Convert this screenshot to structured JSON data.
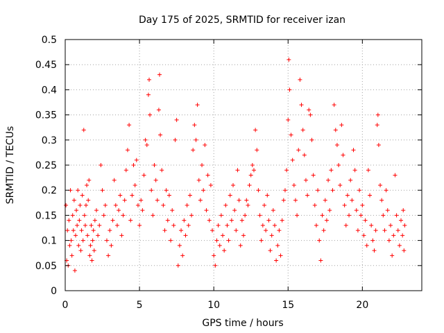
{
  "chart_data": {
    "type": "scatter",
    "title": "Day 175 of 2025, SRMTID for receiver izan",
    "xlabel": "GPS time / hours",
    "ylabel": "SRMTID / TECUs",
    "xlim": [
      0,
      24
    ],
    "ylim": [
      0,
      0.5
    ],
    "xticks": [
      0,
      5,
      10,
      15,
      20
    ],
    "yticks": [
      0,
      0.05,
      0.1,
      0.15,
      0.2,
      0.25,
      0.3,
      0.35,
      0.4,
      0.45,
      0.5
    ],
    "x_tick_labels": [
      "0",
      "5",
      "10",
      "15",
      "20"
    ],
    "y_tick_labels": [
      "0",
      "0.05",
      "0.1",
      "0.15",
      "0.2",
      "0.25",
      "0.3",
      "0.35",
      "0.4",
      "0.45",
      "0.5"
    ],
    "grid": true,
    "marker": "plus",
    "color": "#ff0000",
    "series": [
      {
        "name": "SRMTID",
        "points": [
          [
            0.05,
            0.17
          ],
          [
            0.1,
            0.06
          ],
          [
            0.15,
            0.12
          ],
          [
            0.2,
            0.05
          ],
          [
            0.25,
            0.14
          ],
          [
            0.3,
            0.09
          ],
          [
            0.35,
            0.2
          ],
          [
            0.4,
            0.1
          ],
          [
            0.45,
            0.07
          ],
          [
            0.5,
            0.15
          ],
          [
            0.55,
            0.12
          ],
          [
            0.6,
            0.18
          ],
          [
            0.65,
            0.04
          ],
          [
            0.7,
            0.11
          ],
          [
            0.75,
            0.16
          ],
          [
            0.8,
            0.13
          ],
          [
            0.85,
            0.2
          ],
          [
            0.9,
            0.09
          ],
          [
            0.95,
            0.14
          ],
          [
            1.0,
            0.17
          ],
          [
            1.05,
            0.08
          ],
          [
            1.1,
            0.12
          ],
          [
            1.15,
            0.19
          ],
          [
            1.2,
            0.1
          ],
          [
            1.25,
            0.32
          ],
          [
            1.3,
            0.15
          ],
          [
            1.35,
            0.13
          ],
          [
            1.4,
            0.17
          ],
          [
            1.45,
            0.21
          ],
          [
            1.5,
            0.11
          ],
          [
            1.55,
            0.18
          ],
          [
            1.6,
            0.22
          ],
          [
            1.65,
            0.07
          ],
          [
            1.7,
            0.09
          ],
          [
            1.75,
            0.13
          ],
          [
            1.8,
            0.06
          ],
          [
            1.85,
            0.1
          ],
          [
            1.9,
            0.12
          ],
          [
            1.95,
            0.08
          ],
          [
            2.0,
            0.14
          ],
          [
            2.1,
            0.16
          ],
          [
            2.2,
            0.11
          ],
          [
            2.3,
            0.13
          ],
          [
            2.4,
            0.25
          ],
          [
            2.5,
            0.2
          ],
          [
            2.6,
            0.15
          ],
          [
            2.7,
            0.17
          ],
          [
            2.8,
            0.1
          ],
          [
            2.9,
            0.07
          ],
          [
            3.0,
            0.12
          ],
          [
            3.1,
            0.09
          ],
          [
            3.2,
            0.14
          ],
          [
            3.3,
            0.22
          ],
          [
            3.4,
            0.17
          ],
          [
            3.5,
            0.13
          ],
          [
            3.6,
            0.16
          ],
          [
            3.7,
            0.19
          ],
          [
            3.8,
            0.11
          ],
          [
            3.9,
            0.15
          ],
          [
            4.0,
            0.18
          ],
          [
            4.1,
            0.24
          ],
          [
            4.2,
            0.28
          ],
          [
            4.3,
            0.33
          ],
          [
            4.4,
            0.14
          ],
          [
            4.5,
            0.19
          ],
          [
            4.6,
            0.25
          ],
          [
            4.7,
            0.21
          ],
          [
            4.8,
            0.26
          ],
          [
            4.9,
            0.17
          ],
          [
            5.0,
            0.13
          ],
          [
            5.1,
            0.18
          ],
          [
            5.2,
            0.16
          ],
          [
            5.3,
            0.23
          ],
          [
            5.4,
            0.3
          ],
          [
            5.5,
            0.29
          ],
          [
            5.6,
            0.39
          ],
          [
            5.65,
            0.42
          ],
          [
            5.7,
            0.35
          ],
          [
            5.8,
            0.2
          ],
          [
            5.9,
            0.15
          ],
          [
            6.0,
            0.25
          ],
          [
            6.1,
            0.22
          ],
          [
            6.2,
            0.18
          ],
          [
            6.3,
            0.36
          ],
          [
            6.35,
            0.43
          ],
          [
            6.4,
            0.31
          ],
          [
            6.5,
            0.24
          ],
          [
            6.6,
            0.17
          ],
          [
            6.7,
            0.12
          ],
          [
            6.8,
            0.2
          ],
          [
            6.9,
            0.14
          ],
          [
            7.0,
            0.19
          ],
          [
            7.1,
            0.1
          ],
          [
            7.2,
            0.16
          ],
          [
            7.3,
            0.13
          ],
          [
            7.4,
            0.3
          ],
          [
            7.5,
            0.34
          ],
          [
            7.6,
            0.05
          ],
          [
            7.7,
            0.09
          ],
          [
            7.8,
            0.12
          ],
          [
            7.9,
            0.07
          ],
          [
            8.0,
            0.14
          ],
          [
            8.1,
            0.11
          ],
          [
            8.2,
            0.17
          ],
          [
            8.3,
            0.13
          ],
          [
            8.4,
            0.19
          ],
          [
            8.5,
            0.15
          ],
          [
            8.6,
            0.28
          ],
          [
            8.7,
            0.33
          ],
          [
            8.8,
            0.3
          ],
          [
            8.9,
            0.37
          ],
          [
            9.0,
            0.22
          ],
          [
            9.1,
            0.18
          ],
          [
            9.2,
            0.25
          ],
          [
            9.3,
            0.2
          ],
          [
            9.4,
            0.29
          ],
          [
            9.5,
            0.16
          ],
          [
            9.6,
            0.23
          ],
          [
            9.7,
            0.14
          ],
          [
            9.8,
            0.21
          ],
          [
            9.9,
            0.12
          ],
          [
            10.0,
            0.07
          ],
          [
            10.1,
            0.05
          ],
          [
            10.2,
            0.1
          ],
          [
            10.3,
            0.13
          ],
          [
            10.4,
            0.09
          ],
          [
            10.5,
            0.15
          ],
          [
            10.6,
            0.11
          ],
          [
            10.7,
            0.08
          ],
          [
            10.8,
            0.17
          ],
          [
            10.9,
            0.13
          ],
          [
            11.0,
            0.1
          ],
          [
            11.1,
            0.19
          ],
          [
            11.2,
            0.14
          ],
          [
            11.3,
            0.21
          ],
          [
            11.4,
            0.16
          ],
          [
            11.5,
            0.12
          ],
          [
            11.6,
            0.24
          ],
          [
            11.7,
            0.18
          ],
          [
            11.8,
            0.09
          ],
          [
            11.9,
            0.14
          ],
          [
            12.0,
            0.11
          ],
          [
            12.1,
            0.15
          ],
          [
            12.2,
            0.18
          ],
          [
            12.3,
            0.17
          ],
          [
            12.4,
            0.21
          ],
          [
            12.5,
            0.23
          ],
          [
            12.6,
            0.25
          ],
          [
            12.7,
            0.24
          ],
          [
            12.8,
            0.32
          ],
          [
            12.9,
            0.28
          ],
          [
            13.0,
            0.2
          ],
          [
            13.1,
            0.15
          ],
          [
            13.2,
            0.1
          ],
          [
            13.3,
            0.13
          ],
          [
            13.4,
            0.17
          ],
          [
            13.5,
            0.12
          ],
          [
            13.6,
            0.19
          ],
          [
            13.7,
            0.14
          ],
          [
            13.8,
            0.08
          ],
          [
            13.9,
            0.11
          ],
          [
            14.0,
            0.16
          ],
          [
            14.1,
            0.13
          ],
          [
            14.2,
            0.06
          ],
          [
            14.3,
            0.09
          ],
          [
            14.4,
            0.12
          ],
          [
            14.5,
            0.07
          ],
          [
            14.6,
            0.14
          ],
          [
            14.7,
            0.18
          ],
          [
            14.8,
            0.2
          ],
          [
            14.9,
            0.24
          ],
          [
            15.0,
            0.34
          ],
          [
            15.05,
            0.46
          ],
          [
            15.1,
            0.4
          ],
          [
            15.2,
            0.31
          ],
          [
            15.3,
            0.26
          ],
          [
            15.4,
            0.21
          ],
          [
            15.5,
            0.18
          ],
          [
            15.6,
            0.15
          ],
          [
            15.7,
            0.28
          ],
          [
            15.8,
            0.42
          ],
          [
            15.9,
            0.37
          ],
          [
            16.0,
            0.32
          ],
          [
            16.1,
            0.27
          ],
          [
            16.2,
            0.22
          ],
          [
            16.3,
            0.19
          ],
          [
            16.4,
            0.36
          ],
          [
            16.5,
            0.35
          ],
          [
            16.6,
            0.3
          ],
          [
            16.7,
            0.23
          ],
          [
            16.8,
            0.17
          ],
          [
            16.9,
            0.13
          ],
          [
            17.0,
            0.2
          ],
          [
            17.1,
            0.1
          ],
          [
            17.2,
            0.06
          ],
          [
            17.3,
            0.15
          ],
          [
            17.4,
            0.12
          ],
          [
            17.5,
            0.18
          ],
          [
            17.6,
            0.14
          ],
          [
            17.7,
            0.22
          ],
          [
            17.8,
            0.16
          ],
          [
            17.9,
            0.24
          ],
          [
            18.0,
            0.2
          ],
          [
            18.1,
            0.37
          ],
          [
            18.2,
            0.32
          ],
          [
            18.3,
            0.29
          ],
          [
            18.4,
            0.25
          ],
          [
            18.5,
            0.21
          ],
          [
            18.6,
            0.33
          ],
          [
            18.7,
            0.27
          ],
          [
            18.8,
            0.17
          ],
          [
            18.9,
            0.13
          ],
          [
            19.0,
            0.19
          ],
          [
            19.1,
            0.15
          ],
          [
            19.2,
            0.22
          ],
          [
            19.3,
            0.18
          ],
          [
            19.4,
            0.28
          ],
          [
            19.5,
            0.24
          ],
          [
            19.6,
            0.16
          ],
          [
            19.7,
            0.12
          ],
          [
            19.8,
            0.2
          ],
          [
            19.9,
            0.15
          ],
          [
            20.0,
            0.17
          ],
          [
            20.1,
            0.11
          ],
          [
            20.2,
            0.14
          ],
          [
            20.3,
            0.09
          ],
          [
            20.4,
            0.24
          ],
          [
            20.5,
            0.19
          ],
          [
            20.6,
            0.13
          ],
          [
            20.7,
            0.1
          ],
          [
            20.8,
            0.08
          ],
          [
            20.9,
            0.12
          ],
          [
            21.0,
            0.33
          ],
          [
            21.05,
            0.35
          ],
          [
            21.1,
            0.29
          ],
          [
            21.2,
            0.21
          ],
          [
            21.3,
            0.18
          ],
          [
            21.4,
            0.15
          ],
          [
            21.5,
            0.12
          ],
          [
            21.6,
            0.2
          ],
          [
            21.7,
            0.16
          ],
          [
            21.8,
            0.1
          ],
          [
            21.9,
            0.13
          ],
          [
            22.0,
            0.07
          ],
          [
            22.1,
            0.11
          ],
          [
            22.2,
            0.23
          ],
          [
            22.3,
            0.15
          ],
          [
            22.4,
            0.12
          ],
          [
            22.5,
            0.09
          ],
          [
            22.6,
            0.14
          ],
          [
            22.7,
            0.11
          ],
          [
            22.75,
            0.16
          ],
          [
            22.8,
            0.08
          ],
          [
            22.85,
            0.13
          ]
        ]
      }
    ]
  }
}
